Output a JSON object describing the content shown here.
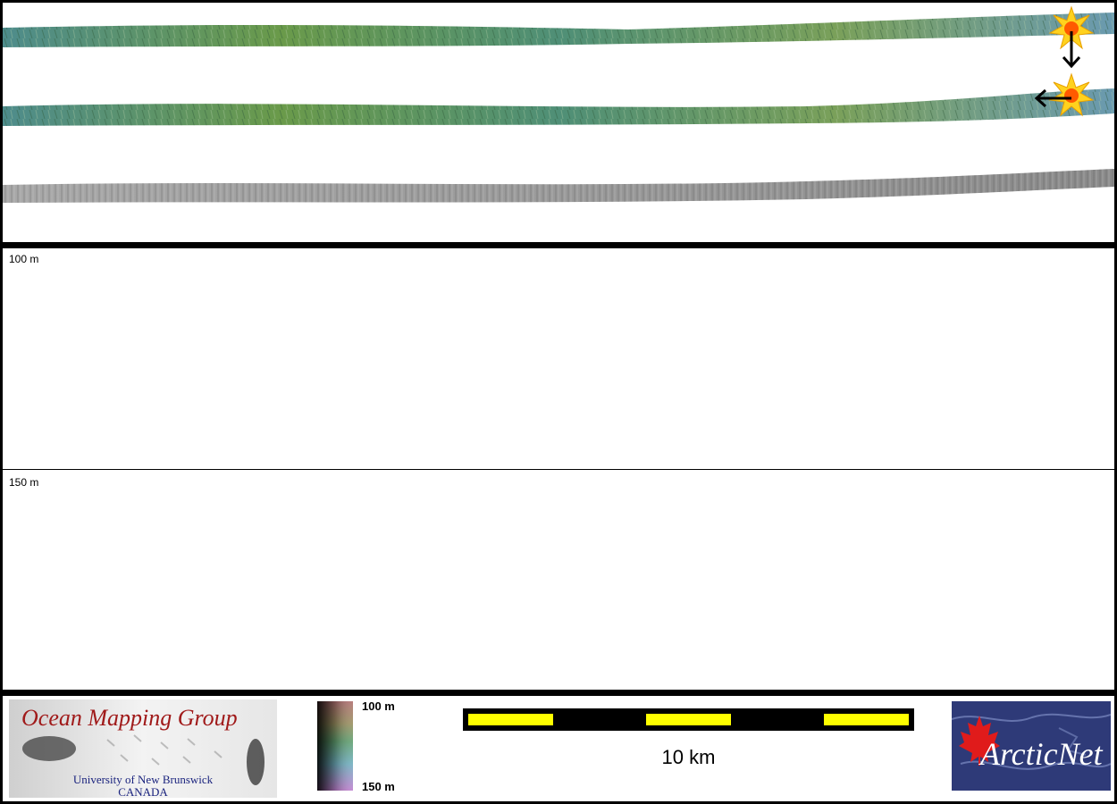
{
  "depth_labels": {
    "upper": "100 m",
    "lower": "150 m"
  },
  "legend": {
    "group_title": "Ocean Mapping Group",
    "university": "University of New Brunswick",
    "country": "CANADA",
    "colorbar": {
      "min_label": "100 m",
      "max_label": "150 m"
    },
    "scale_bar": {
      "label": "10 km",
      "colors": [
        "#ffff00",
        "#000000"
      ]
    },
    "partner_logo": "ArcticNet"
  },
  "icons": [
    "sun-marker-icon",
    "arrow-down-icon",
    "arrow-left-icon",
    "maple-leaf-icon"
  ],
  "colors": {
    "frame": "#000000",
    "swath_green": "#5a9a6a",
    "swath_blue": "#5a8aa8",
    "backscatter": "#9a9a9a"
  }
}
